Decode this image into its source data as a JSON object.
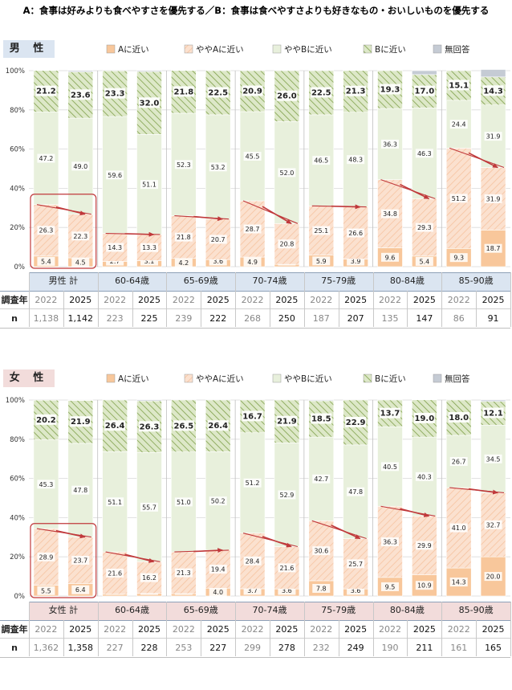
{
  "title": "A：食事は好みよりも食べやすさを優先する／B：食事は食べやすさよりも好きなもの・おいしいものを優先する",
  "legend": [
    "Aに近い",
    "ややAに近い",
    "ややBに近い",
    "Bに近い",
    "無回答"
  ],
  "colors": {
    "a": "#f8c79b",
    "a_stroke": "#e8a06a",
    "yaA": "#fbe1cf",
    "yaB": "#e8f0dc",
    "b": "#b5c98e",
    "na": "#c5cbd4",
    "male_band": "#dbe5f1",
    "female_band": "#f2dcdb",
    "grid": "#d9d9d9",
    "arrow": "#c0393b"
  },
  "y_ticks": [
    "0%",
    "20%",
    "40%",
    "60%",
    "80%",
    "100%"
  ],
  "row_labels": {
    "year": "調査年",
    "n": "n"
  },
  "male": {
    "label": "男 性",
    "groups": [
      "男性 計",
      "60-64歳",
      "65-69歳",
      "70-74歳",
      "75-79歳",
      "80-84歳",
      "85-90歳"
    ],
    "years": [
      "2022",
      "2025",
      "2022",
      "2025",
      "2022",
      "2025",
      "2022",
      "2025",
      "2022",
      "2025",
      "2022",
      "2025",
      "2022",
      "2025"
    ],
    "n": [
      "1,138",
      "1,142",
      "223",
      "225",
      "239",
      "222",
      "268",
      "250",
      "187",
      "207",
      "135",
      "147",
      "86",
      "91"
    ],
    "chart_data": {
      "type": "bar",
      "stacked": true,
      "ylim": [
        0,
        100
      ],
      "series": [
        {
          "name": "Aに近い",
          "values": [
            5.4,
            4.5,
            2.7,
            3.1,
            4.2,
            3.6,
            4.9,
            1.2,
            5.9,
            3.9,
            9.6,
            5.4,
            9.3,
            18.7
          ]
        },
        {
          "name": "ややAに近い",
          "values": [
            26.3,
            22.3,
            14.3,
            13.3,
            21.8,
            20.7,
            28.7,
            20.8,
            25.1,
            26.6,
            34.8,
            29.3,
            51.2,
            31.9
          ]
        },
        {
          "name": "ややBに近い",
          "values": [
            47.2,
            49.0,
            59.6,
            51.1,
            52.3,
            53.2,
            45.5,
            52.0,
            46.5,
            48.3,
            36.3,
            46.3,
            24.4,
            31.9
          ]
        },
        {
          "name": "Bに近い",
          "values": [
            21.2,
            23.6,
            23.3,
            32.0,
            21.8,
            22.5,
            20.9,
            26.0,
            22.5,
            21.3,
            19.3,
            17.0,
            15.1,
            14.3
          ]
        },
        {
          "name": "無回答",
          "values": [
            0,
            0.6,
            0,
            0.5,
            0,
            0,
            0,
            0,
            0,
            0,
            0,
            2.0,
            0,
            3.8
          ]
        }
      ]
    }
  },
  "female": {
    "label": "女 性",
    "groups": [
      "女性 計",
      "60-64歳",
      "65-69歳",
      "70-74歳",
      "75-79歳",
      "80-84歳",
      "85-90歳"
    ],
    "years": [
      "2022",
      "2025",
      "2022",
      "2025",
      "2022",
      "2025",
      "2022",
      "2025",
      "2022",
      "2025",
      "2022",
      "2025",
      "2022",
      "2025"
    ],
    "n": [
      "1,362",
      "1,358",
      "227",
      "228",
      "253",
      "227",
      "299",
      "278",
      "232",
      "249",
      "190",
      "211",
      "161",
      "165"
    ],
    "chart_data": {
      "type": "bar",
      "stacked": true,
      "ylim": [
        0,
        100
      ],
      "series": [
        {
          "name": "Aに近い",
          "values": [
            5.5,
            6.4,
            0.9,
            1.3,
            1.2,
            4.0,
            3.7,
            3.6,
            7.8,
            3.6,
            9.5,
            10.9,
            14.3,
            20.0
          ]
        },
        {
          "name": "ややAに近い",
          "values": [
            28.9,
            23.7,
            21.6,
            16.2,
            21.3,
            19.4,
            28.4,
            21.6,
            30.6,
            25.7,
            36.3,
            29.9,
            41.0,
            32.7
          ]
        },
        {
          "name": "ややBに近い",
          "values": [
            45.3,
            47.8,
            51.1,
            55.7,
            51.0,
            50.2,
            51.2,
            52.9,
            42.7,
            47.8,
            40.5,
            40.3,
            26.7,
            34.5
          ]
        },
        {
          "name": "Bに近い",
          "values": [
            20.2,
            21.9,
            26.4,
            26.3,
            26.5,
            26.4,
            16.7,
            21.9,
            18.5,
            22.9,
            13.7,
            19.0,
            18.0,
            12.1
          ]
        },
        {
          "name": "無回答",
          "values": [
            0,
            0.2,
            0,
            0.5,
            0,
            0,
            0,
            0,
            0.4,
            0,
            0,
            0,
            0,
            0.7
          ]
        }
      ]
    }
  }
}
